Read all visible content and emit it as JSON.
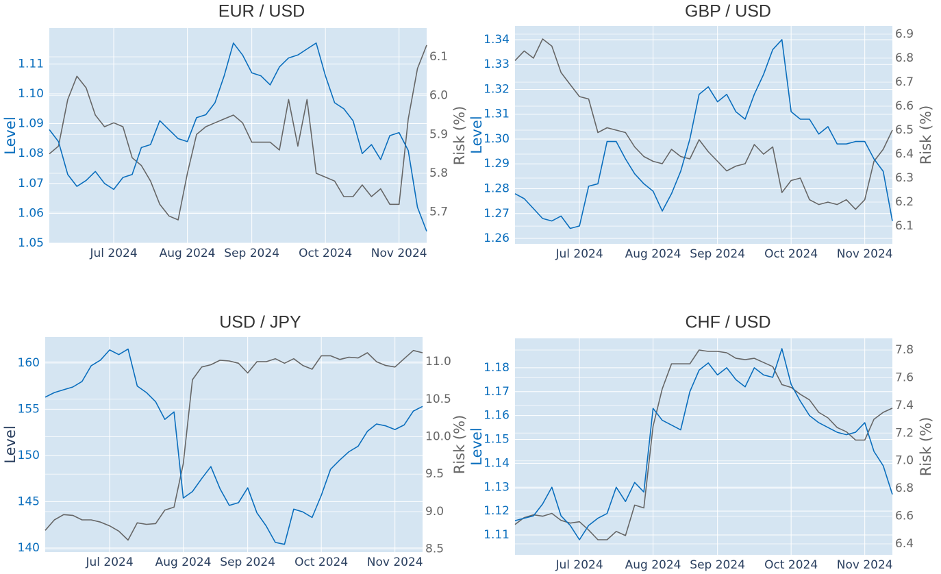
{
  "chart_data": [
    {
      "type": "line",
      "title": "EUR / USD",
      "ylabel": "Level",
      "y2label": "Risk (%)",
      "ylabel_color": "#0a6ebd",
      "categories": [
        null,
        null,
        null,
        null,
        null,
        null,
        null,
        "Jul 2024",
        null,
        null,
        null,
        null,
        null,
        null,
        null,
        "Aug 2024",
        null,
        null,
        null,
        null,
        null,
        null,
        "Sep 2024",
        null,
        null,
        null,
        null,
        null,
        null,
        null,
        "Oct 2024",
        null,
        null,
        null,
        null,
        null,
        null,
        null,
        "Nov 2024",
        null,
        null,
        null
      ],
      "ylim": [
        1.05,
        1.122
      ],
      "yticks": [
        1.05,
        1.06,
        1.07,
        1.08,
        1.09,
        {
          "value": 1.1,
          "label": "1.10"
        },
        1.11
      ],
      "y2lim": [
        5.62,
        6.174
      ],
      "y2ticks": [
        5.7,
        5.8,
        5.9,
        {
          "value": 6,
          "label": "6.0"
        },
        6.1
      ],
      "grid": true,
      "series": [
        {
          "color": "#0a6ebd",
          "values": [
            1.088,
            1.084,
            1.073,
            1.069,
            1.071,
            1.074,
            1.07,
            1.068,
            1.072,
            1.073,
            1.082,
            1.083,
            1.091,
            1.088,
            1.085,
            1.084,
            1.092,
            1.093,
            1.097,
            1.106,
            1.117,
            1.113,
            1.107,
            1.106,
            1.103,
            1.109,
            1.112,
            1.113,
            1.115,
            1.117,
            1.106,
            1.097,
            1.095,
            1.091,
            1.08,
            1.083,
            1.078,
            1.086,
            1.087,
            1.081,
            1.062,
            1.054
          ]
        },
        {
          "color": "#666666",
          "axis": "y2",
          "values": [
            5.85,
            5.87,
            5.99,
            6.05,
            6.02,
            5.95,
            5.92,
            5.93,
            5.92,
            5.84,
            5.82,
            5.78,
            5.72,
            5.69,
            5.68,
            5.8,
            5.9,
            5.92,
            5.93,
            5.94,
            5.95,
            5.93,
            5.88,
            5.88,
            5.88,
            5.86,
            5.99,
            5.87,
            5.99,
            5.8,
            5.79,
            5.78,
            5.74,
            5.74,
            5.77,
            5.74,
            5.76,
            5.72,
            5.72,
            5.94,
            6.07,
            6.13
          ]
        }
      ]
    },
    {
      "type": "line",
      "title": "GBP / USD",
      "ylabel": "Level",
      "y2label": "Risk (%)",
      "ylabel_color": "#0a6ebd",
      "categories": [
        null,
        null,
        null,
        null,
        null,
        null,
        null,
        "Jul 2024",
        null,
        null,
        null,
        null,
        null,
        null,
        null,
        "Aug 2024",
        null,
        null,
        null,
        null,
        null,
        null,
        "Sep 2024",
        null,
        null,
        null,
        null,
        null,
        null,
        null,
        "Oct 2024",
        null,
        null,
        null,
        null,
        null,
        null,
        null,
        "Nov 2024",
        null,
        null,
        null
      ],
      "ylim": [
        1.2578,
        1.3455
      ],
      "yticks": [
        1.26,
        1.27,
        1.28,
        1.29,
        {
          "value": 1.3,
          "label": "1.30"
        },
        1.31,
        1.32,
        1.33,
        1.34
      ],
      "y2lim": [
        6.026,
        6.934
      ],
      "y2ticks": [
        6.1,
        6.2,
        6.3,
        6.4,
        6.5,
        6.6,
        6.7,
        6.8,
        6.9
      ],
      "grid": true,
      "series": [
        {
          "color": "#0a6ebd",
          "values": [
            1.278,
            1.276,
            1.272,
            1.268,
            1.267,
            1.269,
            1.264,
            1.265,
            1.281,
            1.282,
            1.299,
            1.299,
            1.292,
            1.286,
            1.282,
            1.279,
            1.271,
            1.278,
            1.287,
            1.3,
            1.318,
            1.321,
            1.315,
            1.318,
            1.311,
            1.308,
            1.318,
            1.326,
            1.336,
            1.34,
            1.311,
            1.308,
            1.308,
            1.302,
            1.305,
            1.298,
            1.298,
            1.299,
            1.299,
            1.292,
            1.287,
            1.267
          ]
        },
        {
          "color": "#666666",
          "axis": "y2",
          "values": [
            6.79,
            6.83,
            6.8,
            6.88,
            6.85,
            6.74,
            6.69,
            6.64,
            6.63,
            6.49,
            6.51,
            6.5,
            6.49,
            6.43,
            6.39,
            6.37,
            6.36,
            6.42,
            6.39,
            6.38,
            6.46,
            6.41,
            6.37,
            6.33,
            6.35,
            6.36,
            6.44,
            6.4,
            6.43,
            6.24,
            6.29,
            6.3,
            6.21,
            6.19,
            6.2,
            6.19,
            6.21,
            6.17,
            6.21,
            6.37,
            6.42,
            6.5
          ]
        }
      ]
    },
    {
      "type": "line",
      "title": "USD / JPY",
      "ylabel": "Level",
      "y2label": "Risk (%)",
      "ylabel_color": "#2a3f5f",
      "categories": [
        null,
        null,
        null,
        null,
        null,
        null,
        null,
        "Jul 2024",
        null,
        null,
        null,
        null,
        null,
        null,
        null,
        "Aug 2024",
        null,
        null,
        null,
        null,
        null,
        null,
        "Sep 2024",
        null,
        null,
        null,
        null,
        null,
        null,
        null,
        "Oct 2024",
        null,
        null,
        null,
        null,
        null,
        null,
        null,
        "Nov 2024",
        null,
        null,
        null
      ],
      "ylim": [
        139.56,
        162.8
      ],
      "yticks": [
        140,
        145,
        150,
        155,
        160
      ],
      "y2lim": [
        8.46,
        11.33
      ],
      "y2ticks": [
        8.5,
        {
          "value": 9,
          "label": "9.0"
        },
        9.5,
        {
          "value": 10,
          "label": "10.0"
        },
        10.5,
        {
          "value": 11,
          "label": "11.0"
        }
      ],
      "grid": true,
      "series": [
        {
          "color": "#0a6ebd",
          "values": [
            156.3,
            156.8,
            157.1,
            157.4,
            158.0,
            159.7,
            160.3,
            161.4,
            160.9,
            161.5,
            157.5,
            156.8,
            155.8,
            153.9,
            154.7,
            145.4,
            146.1,
            147.5,
            148.8,
            146.4,
            144.6,
            144.9,
            146.5,
            143.8,
            142.4,
            140.6,
            140.4,
            144.2,
            143.9,
            143.3,
            145.7,
            148.5,
            149.5,
            150.4,
            151.0,
            152.6,
            153.4,
            153.2,
            152.8,
            153.3,
            154.8,
            155.3
          ]
        },
        {
          "color": "#666666",
          "axis": "y2",
          "values": [
            8.75,
            8.89,
            8.96,
            8.95,
            8.89,
            8.89,
            8.86,
            8.81,
            8.74,
            8.62,
            8.85,
            8.83,
            8.84,
            9.02,
            9.06,
            9.64,
            10.76,
            10.93,
            10.96,
            11.02,
            11.01,
            10.98,
            10.85,
            11.0,
            11.0,
            11.04,
            10.98,
            11.04,
            10.95,
            10.9,
            11.08,
            11.08,
            11.03,
            11.06,
            11.05,
            11.12,
            11.0,
            10.95,
            10.93,
            11.04,
            11.15,
            11.12
          ]
        }
      ]
    },
    {
      "type": "line",
      "title": "CHF / USD",
      "ylabel": "Level",
      "y2label": "Risk (%)",
      "ylabel_color": "#0a6ebd",
      "categories": [
        null,
        null,
        null,
        null,
        null,
        null,
        null,
        "Jul 2024",
        null,
        null,
        null,
        null,
        null,
        null,
        null,
        "Aug 2024",
        null,
        null,
        null,
        null,
        null,
        null,
        "Sep 2024",
        null,
        null,
        null,
        null,
        null,
        null,
        null,
        "Oct 2024",
        null,
        null,
        null,
        null,
        null,
        null,
        null,
        "Nov 2024",
        null,
        null,
        null
      ],
      "ylim": [
        1.1017,
        1.1923
      ],
      "yticks": [
        1.11,
        1.12,
        1.13,
        1.14,
        1.15,
        1.16,
        1.17,
        1.18
      ],
      "y2lim": [
        6.321,
        7.884
      ],
      "y2ticks": [
        6.4,
        6.6,
        6.8,
        {
          "value": 7,
          "label": "7.0"
        },
        7.2,
        7.4,
        7.6,
        7.8
      ],
      "grid": true,
      "series": [
        {
          "color": "#0a6ebd",
          "values": [
            1.116,
            1.117,
            1.118,
            1.123,
            1.13,
            1.118,
            1.114,
            1.108,
            1.114,
            1.117,
            1.119,
            1.13,
            1.124,
            1.132,
            1.128,
            1.163,
            1.158,
            1.156,
            1.154,
            1.17,
            1.179,
            1.182,
            1.177,
            1.18,
            1.175,
            1.172,
            1.18,
            1.177,
            1.176,
            1.188,
            1.173,
            1.166,
            1.16,
            1.157,
            1.155,
            1.153,
            1.152,
            1.153,
            1.157,
            1.145,
            1.139,
            1.127
          ]
        },
        {
          "color": "#666666",
          "axis": "y2",
          "values": [
            6.54,
            6.59,
            6.61,
            6.6,
            6.62,
            6.57,
            6.55,
            6.56,
            6.5,
            6.43,
            6.43,
            6.49,
            6.46,
            6.68,
            6.66,
            7.25,
            7.52,
            7.7,
            7.7,
            7.7,
            7.8,
            7.79,
            7.79,
            7.78,
            7.74,
            7.73,
            7.74,
            7.71,
            7.68,
            7.55,
            7.53,
            7.48,
            7.44,
            7.35,
            7.31,
            7.24,
            7.21,
            7.15,
            7.15,
            7.3,
            7.35,
            7.38
          ]
        }
      ]
    }
  ]
}
